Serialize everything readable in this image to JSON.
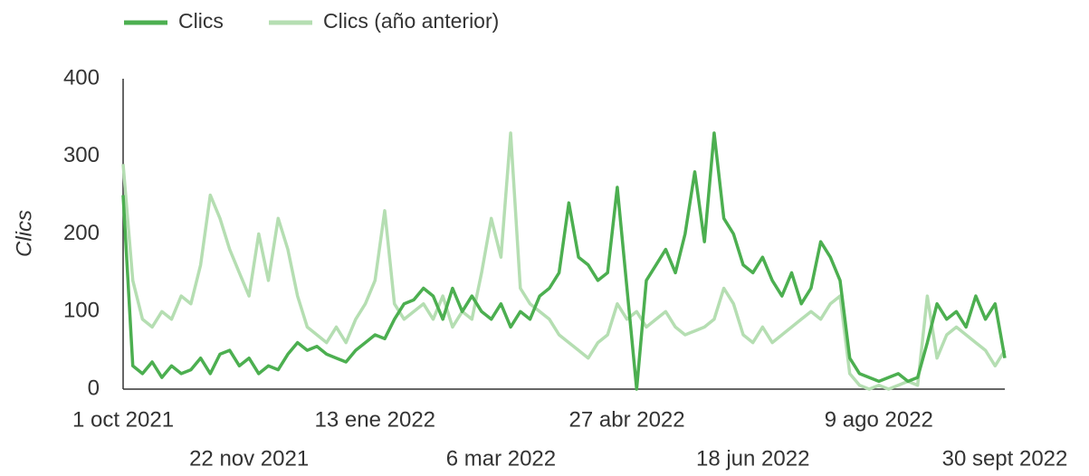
{
  "chart_data": {
    "type": "line",
    "categories": [
      "1 oct 2021",
      null,
      null,
      null,
      null,
      null,
      null,
      null,
      null,
      null,
      null,
      null,
      null,
      "22 nov 2021",
      null,
      null,
      null,
      null,
      null,
      null,
      null,
      null,
      null,
      null,
      null,
      null,
      "13 ene 2022",
      null,
      null,
      null,
      null,
      null,
      null,
      null,
      null,
      null,
      null,
      null,
      null,
      "6 mar 2022",
      null,
      null,
      null,
      null,
      null,
      null,
      null,
      null,
      null,
      null,
      null,
      null,
      "27 abr 2022",
      null,
      null,
      null,
      null,
      null,
      null,
      null,
      null,
      null,
      null,
      null,
      null,
      "18 jun 2022",
      null,
      null,
      null,
      null,
      null,
      null,
      null,
      null,
      null,
      null,
      null,
      null,
      "9 ago 2022",
      null,
      null,
      null,
      null,
      null,
      null,
      null,
      null,
      null,
      null,
      null,
      null,
      "30 sept 2022"
    ],
    "series": [
      {
        "name": "Clics",
        "color": "#4caf50",
        "values": [
          250,
          30,
          20,
          35,
          15,
          30,
          20,
          25,
          40,
          20,
          45,
          50,
          30,
          40,
          20,
          30,
          25,
          45,
          60,
          50,
          55,
          45,
          40,
          35,
          50,
          60,
          70,
          65,
          90,
          110,
          115,
          130,
          120,
          90,
          130,
          100,
          120,
          100,
          90,
          110,
          80,
          100,
          90,
          120,
          130,
          150,
          240,
          170,
          160,
          140,
          150,
          260,
          130,
          0,
          140,
          160,
          180,
          150,
          200,
          280,
          190,
          330,
          220,
          200,
          160,
          150,
          170,
          140,
          120,
          150,
          110,
          130,
          190,
          170,
          140,
          40,
          20,
          15,
          10,
          15,
          20,
          10,
          15,
          60,
          110,
          90,
          100,
          80,
          120,
          90,
          110,
          40
        ]
      },
      {
        "name": "Clics (año anterior)",
        "color": "#b5deb2",
        "values": [
          290,
          140,
          90,
          80,
          100,
          90,
          120,
          110,
          160,
          250,
          220,
          180,
          150,
          120,
          200,
          140,
          220,
          180,
          120,
          80,
          70,
          60,
          80,
          60,
          90,
          110,
          140,
          230,
          110,
          90,
          100,
          110,
          90,
          120,
          80,
          100,
          90,
          150,
          220,
          170,
          330,
          130,
          110,
          100,
          90,
          70,
          60,
          50,
          40,
          60,
          70,
          110,
          90,
          100,
          80,
          90,
          100,
          80,
          70,
          75,
          80,
          90,
          130,
          110,
          70,
          60,
          80,
          60,
          70,
          80,
          90,
          100,
          90,
          110,
          120,
          20,
          5,
          0,
          5,
          0,
          5,
          10,
          5,
          120,
          40,
          70,
          80,
          70,
          60,
          50,
          30,
          50
        ]
      }
    ],
    "y_label": "Clics",
    "ylim": [
      0,
      400
    ],
    "yticks": [
      0,
      100,
      200,
      300,
      400
    ],
    "grid": false
  }
}
